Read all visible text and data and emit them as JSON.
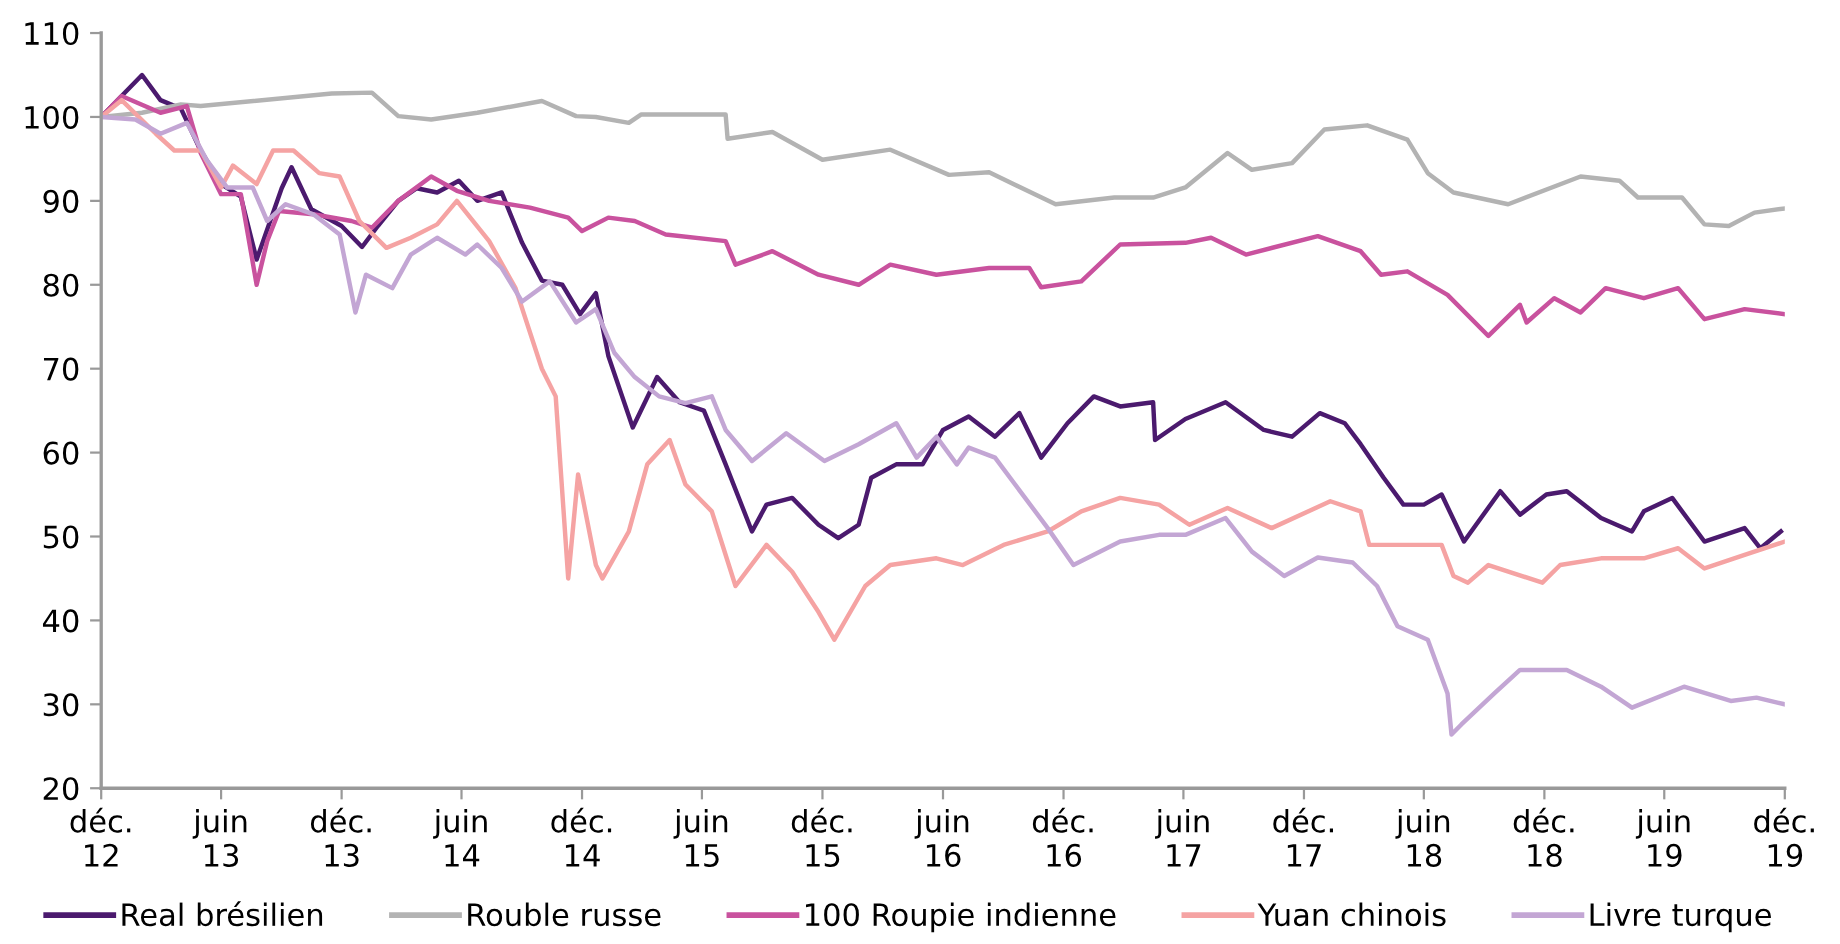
{
  "chart_data": {
    "type": "line",
    "xlim": [
      "2012-12-01",
      "2019-12-01"
    ],
    "xticks": [
      {
        "value": "2012-12-01",
        "label": "déc.\n12"
      },
      {
        "value": "2013-06-01",
        "label": "juin\n13"
      },
      {
        "value": "2013-12-01",
        "label": "déc.\n13"
      },
      {
        "value": "2014-06-01",
        "label": "juin\n14"
      },
      {
        "value": "2014-12-01",
        "label": "déc.\n14"
      },
      {
        "value": "2015-06-01",
        "label": "juin\n15"
      },
      {
        "value": "2015-12-01",
        "label": "déc.\n15"
      },
      {
        "value": "2016-06-01",
        "label": "juin\n16"
      },
      {
        "value": "2016-12-01",
        "label": "déc.\n16"
      },
      {
        "value": "2017-06-01",
        "label": "juin\n17"
      },
      {
        "value": "2017-12-01",
        "label": "déc.\n17"
      },
      {
        "value": "2018-06-01",
        "label": "juin\n18"
      },
      {
        "value": "2018-12-01",
        "label": "déc.\n18"
      },
      {
        "value": "2019-06-01",
        "label": "juin\n19"
      },
      {
        "value": "2019-12-01",
        "label": "déc.\n19"
      }
    ],
    "ylim": [
      20,
      110
    ],
    "yticks": [
      20,
      30,
      40,
      50,
      60,
      70,
      80,
      90,
      100,
      110
    ],
    "grid": false,
    "legend": "bottom",
    "marker": "none",
    "line_style": "solid",
    "series": [
      {
        "name": "Real brésilien",
        "color": "#4b1a6e",
        "x": [
          "2012-12-01",
          "2013-02-01",
          "2013-03-01",
          "2013-04-01",
          "2013-05-01",
          "2013-06-01",
          "2013-07-01",
          "2013-07-25",
          "2013-09-01",
          "2013-09-16",
          "2013-10-16",
          "2013-12-01",
          "2014-01-01",
          "2014-01-25",
          "2014-02-25",
          "2014-03-25",
          "2014-04-25",
          "2014-05-28",
          "2014-06-25",
          "2014-08-01",
          "2014-09-01",
          "2014-10-01",
          "2014-11-01",
          "2014-11-28",
          "2014-12-22",
          "2015-01-10",
          "2015-02-16",
          "2015-03-25",
          "2015-04-28",
          "2015-06-04",
          "2015-07-07",
          "2015-08-16",
          "2015-09-07",
          "2015-10-16",
          "2015-11-25",
          "2015-12-25",
          "2016-01-25",
          "2016-02-13",
          "2016-03-22",
          "2016-05-01",
          "2016-06-01",
          "2016-07-10",
          "2016-08-19",
          "2016-09-25",
          "2016-10-28",
          "2016-12-07",
          "2017-01-16",
          "2017-02-25",
          "2017-04-16",
          "2017-04-19",
          "2017-06-04",
          "2017-08-04",
          "2017-10-01",
          "2017-11-13",
          "2017-12-25",
          "2018-02-01",
          "2018-02-25",
          "2018-04-01",
          "2018-05-01",
          "2018-06-01",
          "2018-06-28",
          "2018-08-01",
          "2018-09-25",
          "2018-10-25",
          "2018-12-04",
          "2019-01-04",
          "2019-02-25",
          "2019-04-13",
          "2019-05-01",
          "2019-06-13",
          "2019-08-01",
          "2019-10-01",
          "2019-10-25",
          "2019-11-25"
        ],
        "values": [
          100,
          105,
          102,
          101,
          96,
          92,
          90.5,
          83,
          91.5,
          94,
          89,
          87,
          84.5,
          87,
          90,
          91.5,
          91,
          92.4,
          90,
          91,
          85,
          80.5,
          80,
          76.5,
          79,
          71.5,
          63,
          69,
          66,
          65,
          58.6,
          50.6,
          53.8,
          54.6,
          51.4,
          49.8,
          51.4,
          57,
          58.6,
          58.6,
          62.7,
          64.3,
          61.9,
          64.7,
          59.4,
          63.5,
          66.7,
          65.5,
          66,
          61.5,
          64,
          66,
          62.7,
          61.9,
          64.7,
          63.5,
          61,
          57,
          53.8,
          53.8,
          55,
          49.4,
          55.4,
          52.6,
          55,
          55.4,
          52.2,
          50.6,
          53,
          54.6,
          49.4,
          51,
          48.6,
          50.6
        ]
      },
      {
        "name": "Rouble russe",
        "color": "#b3b3b3",
        "x": [
          "2012-12-01",
          "2013-02-01",
          "2013-04-01",
          "2013-05-01",
          "2013-11-16",
          "2014-01-16",
          "2014-02-25",
          "2014-04-16",
          "2014-06-25",
          "2014-10-01",
          "2014-11-22",
          "2014-12-22",
          "2015-02-10",
          "2015-03-01",
          "2015-07-07",
          "2015-07-10",
          "2015-09-16",
          "2015-12-01",
          "2016-03-13",
          "2016-06-10",
          "2016-08-10",
          "2016-11-19",
          "2017-02-16",
          "2017-04-16",
          "2017-06-04",
          "2017-08-07",
          "2017-09-13",
          "2017-11-13",
          "2018-01-01",
          "2018-03-07",
          "2018-05-07",
          "2018-06-07",
          "2018-07-16",
          "2018-10-07",
          "2019-01-25",
          "2019-03-25",
          "2019-04-22",
          "2019-06-28",
          "2019-08-01",
          "2019-09-07",
          "2019-10-16",
          "2019-12-01"
        ],
        "values": [
          100,
          100.5,
          101.5,
          101.3,
          102.8,
          102.9,
          100.1,
          99.7,
          100.5,
          101.9,
          100.1,
          100,
          99.3,
          100.3,
          100.3,
          97.4,
          98.2,
          94.9,
          96.1,
          93.1,
          93.4,
          89.6,
          90.4,
          90.4,
          91.6,
          95.7,
          93.7,
          94.5,
          98.5,
          99,
          97.3,
          93.3,
          91,
          89.6,
          92.9,
          92.4,
          90.4,
          90.4,
          87.2,
          87,
          88.6,
          89.1
        ]
      },
      {
        "name": "100 Roupie indienne",
        "color": "#c9529e",
        "x": [
          "2012-12-01",
          "2013-01-01",
          "2013-03-01",
          "2013-04-10",
          "2013-05-01",
          "2013-06-01",
          "2013-07-01",
          "2013-07-25",
          "2013-08-10",
          "2013-08-28",
          "2013-10-19",
          "2013-12-16",
          "2014-01-16",
          "2014-02-25",
          "2014-04-16",
          "2014-05-25",
          "2014-07-13",
          "2014-09-13",
          "2014-11-10",
          "2014-12-01",
          "2015-01-10",
          "2015-02-19",
          "2015-04-07",
          "2015-07-07",
          "2015-07-22",
          "2015-09-16",
          "2015-11-25",
          "2016-01-25",
          "2016-03-13",
          "2016-05-22",
          "2016-08-10",
          "2016-10-10",
          "2016-10-28",
          "2016-12-28",
          "2017-02-25",
          "2017-06-04",
          "2017-07-13",
          "2017-09-04",
          "2017-12-22",
          "2018-02-25",
          "2018-03-28",
          "2018-05-07",
          "2018-07-07",
          "2018-09-07",
          "2018-10-25",
          "2018-11-04",
          "2018-12-16",
          "2019-01-25",
          "2019-03-04",
          "2019-05-01",
          "2019-06-22",
          "2019-08-01",
          "2019-10-01",
          "2019-12-01"
        ],
        "values": [
          100,
          102.5,
          100.5,
          101.3,
          95.7,
          90.8,
          90.8,
          80,
          85.2,
          88.8,
          88.4,
          87.6,
          86.8,
          90,
          92.9,
          91.2,
          90,
          89.2,
          88,
          86.4,
          88,
          87.6,
          86,
          85.2,
          82.4,
          84,
          81.2,
          80,
          82.4,
          81.2,
          82,
          82,
          79.7,
          80.4,
          84.8,
          85,
          85.6,
          83.6,
          85.8,
          84,
          81.2,
          81.6,
          78.8,
          73.9,
          77.6,
          75.5,
          78.4,
          76.7,
          79.6,
          78.4,
          79.6,
          75.9,
          77.1,
          76.5
        ]
      },
      {
        "name": "Yuan chinois",
        "color": "#f5a3a3",
        "x": [
          "2012-12-01",
          "2013-01-01",
          "2013-02-22",
          "2013-03-22",
          "2013-05-01",
          "2013-06-01",
          "2013-06-19",
          "2013-07-25",
          "2013-08-19",
          "2013-09-19",
          "2013-10-28",
          "2013-11-28",
          "2013-12-28",
          "2014-02-07",
          "2014-03-16",
          "2014-04-25",
          "2014-05-25",
          "2014-07-13",
          "2014-08-22",
          "2014-10-01",
          "2014-10-22",
          "2014-11-10",
          "2014-11-25",
          "2014-12-22",
          "2015-01-01",
          "2015-02-10",
          "2015-03-10",
          "2015-04-13",
          "2015-05-07",
          "2015-06-16",
          "2015-07-22",
          "2015-09-07",
          "2015-10-16",
          "2015-11-25",
          "2015-12-19",
          "2016-02-04",
          "2016-03-13",
          "2016-05-22",
          "2016-07-01",
          "2016-09-01",
          "2016-11-07",
          "2016-12-28",
          "2017-02-25",
          "2017-04-25",
          "2017-06-10",
          "2017-08-07",
          "2017-10-13",
          "2018-01-10",
          "2018-02-25",
          "2018-03-10",
          "2018-06-28",
          "2018-07-16",
          "2018-08-07",
          "2018-09-07",
          "2018-11-28",
          "2018-12-25",
          "2019-02-25",
          "2019-05-01",
          "2019-06-22",
          "2019-08-01",
          "2019-10-01",
          "2019-12-01"
        ],
        "values": [
          100,
          102,
          98,
          96,
          96,
          91.6,
          94.2,
          92,
          96,
          96,
          93.3,
          92.9,
          87.6,
          84.4,
          85.6,
          87.2,
          90,
          85.2,
          79.6,
          70,
          66.7,
          45,
          57.4,
          46.6,
          45,
          50.6,
          58.6,
          61.5,
          56.2,
          53,
          44.1,
          49,
          45.8,
          41,
          37.7,
          44.1,
          46.6,
          47.4,
          46.6,
          49,
          50.6,
          53,
          54.6,
          53.8,
          51.4,
          53.4,
          51,
          54.2,
          53,
          49,
          49,
          45.3,
          44.5,
          46.6,
          44.5,
          46.6,
          47.4,
          47.4,
          48.6,
          46.2,
          47.8,
          49.4
        ]
      },
      {
        "name": "Livre turque",
        "color": "#c3a6d4",
        "x": [
          "2012-12-01",
          "2013-01-22",
          "2013-03-01",
          "2013-04-10",
          "2013-05-10",
          "2013-06-10",
          "2013-07-19",
          "2013-08-10",
          "2013-09-07",
          "2013-10-19",
          "2013-11-28",
          "2013-12-22",
          "2014-01-07",
          "2014-02-16",
          "2014-03-16",
          "2014-04-25",
          "2014-06-07",
          "2014-06-25",
          "2014-08-01",
          "2014-09-01",
          "2014-10-13",
          "2014-11-22",
          "2014-12-22",
          "2015-01-19",
          "2015-02-19",
          "2015-03-28",
          "2015-05-07",
          "2015-06-16",
          "2015-07-07",
          "2015-08-16",
          "2015-10-07",
          "2015-12-04",
          "2016-01-25",
          "2016-03-22",
          "2016-04-22",
          "2016-05-22",
          "2016-06-22",
          "2016-07-10",
          "2016-08-19",
          "2016-11-07",
          "2016-12-16",
          "2017-02-25",
          "2017-04-25",
          "2017-06-04",
          "2017-08-04",
          "2017-09-13",
          "2017-11-01",
          "2017-12-22",
          "2018-02-13",
          "2018-03-22",
          "2018-04-22",
          "2018-06-07",
          "2018-07-07",
          "2018-07-13",
          "2018-07-28",
          "2018-09-16",
          "2018-10-25",
          "2019-01-04",
          "2019-02-25",
          "2019-04-13",
          "2019-07-01",
          "2019-09-10",
          "2019-10-19",
          "2019-12-01"
        ],
        "values": [
          100,
          99.7,
          98,
          99.3,
          94.9,
          91.6,
          91.6,
          87.6,
          89.6,
          88.4,
          86,
          76.7,
          81.2,
          79.6,
          83.6,
          85.6,
          83.6,
          84.8,
          82,
          78,
          80.4,
          75.5,
          77.1,
          71.9,
          69,
          66.7,
          65.9,
          66.7,
          62.7,
          59,
          62.3,
          59,
          61,
          63.5,
          59.4,
          61.9,
          58.6,
          60.6,
          59.4,
          51,
          46.6,
          49.4,
          50.2,
          50.2,
          52.2,
          48.2,
          45.3,
          47.5,
          46.9,
          44.1,
          39.3,
          37.7,
          31.3,
          26.4,
          27.6,
          31.3,
          34.1,
          34.1,
          32.1,
          29.6,
          32.1,
          30.4,
          30.8,
          30
        ]
      }
    ]
  }
}
